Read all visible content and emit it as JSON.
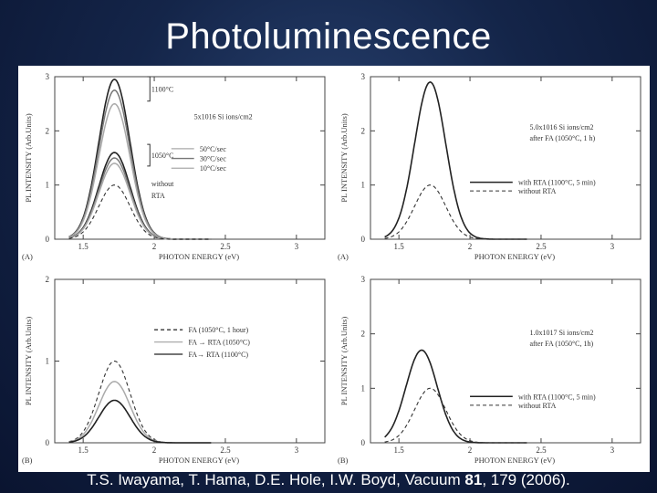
{
  "slide": {
    "title": "Photoluminescence",
    "citation_pre": "T.S. Iwayama, T. Hama, D.E. Hole, I.W. Boyd, Vacuum ",
    "citation_volume": "81",
    "citation_post": ", 179 (2006)."
  },
  "chart_data": [
    {
      "type": "line",
      "panel": "top-left",
      "tag": "(A)",
      "xlabel": "PHOTON ENERGY (eV)",
      "ylabel": "PL INTENSITY (Arb.Units)",
      "xlim": [
        1.3,
        3.2
      ],
      "ylim": [
        0,
        3
      ],
      "xticks": [
        "1.5",
        "2",
        "2.5",
        "3"
      ],
      "yticks": [
        "0",
        "1",
        "2",
        "3"
      ],
      "annotations": [
        "5x1016 Si ions/cm2",
        "1100°C",
        "1050°C"
      ],
      "legend": [
        "50°C/sec",
        "30°C/sec",
        "10°C/sec",
        "without",
        "RTA"
      ],
      "series": [
        {
          "peak_x": 1.72,
          "peak_y": 2.95,
          "style": "solid-dark"
        },
        {
          "peak_x": 1.72,
          "peak_y": 2.75,
          "style": "solid-gray"
        },
        {
          "peak_x": 1.72,
          "peak_y": 2.5,
          "style": "solid-light"
        },
        {
          "peak_x": 1.72,
          "peak_y": 1.6,
          "style": "solid-dark"
        },
        {
          "peak_x": 1.72,
          "peak_y": 1.5,
          "style": "solid-gray"
        },
        {
          "peak_x": 1.72,
          "peak_y": 1.4,
          "style": "solid-light"
        },
        {
          "peak_x": 1.72,
          "peak_y": 1.0,
          "style": "dashed"
        }
      ]
    },
    {
      "type": "line",
      "panel": "top-right",
      "tag": "(A)",
      "xlabel": "PHOTON ENERGY (eV)",
      "ylabel": "PL INTENSITY (Arb.Units)",
      "xlim": [
        1.3,
        3.2
      ],
      "ylim": [
        0,
        3
      ],
      "xticks": [
        "1.5",
        "2",
        "2.5",
        "3"
      ],
      "yticks": [
        "0",
        "1",
        "2",
        "3"
      ],
      "annotations": [
        "5.0x1016 Si ions/cm2",
        "after FA (1050°C, 1 h)"
      ],
      "legend": [
        "with RTA (1100°C, 5 min)",
        "without RTA"
      ],
      "series": [
        {
          "name": "with RTA (1100°C, 5 min)",
          "peak_x": 1.72,
          "peak_y": 2.9,
          "style": "solid-dark"
        },
        {
          "name": "without RTA",
          "peak_x": 1.72,
          "peak_y": 1.0,
          "style": "dashed"
        }
      ]
    },
    {
      "type": "line",
      "panel": "bottom-left",
      "tag": "(B)",
      "xlabel": "PHOTON ENERGY (eV)",
      "ylabel": "PL INTENSITY (Arb.Units)",
      "xlim": [
        1.3,
        3.2
      ],
      "ylim": [
        0,
        2
      ],
      "xticks": [
        "1.5",
        "2",
        "2.5",
        "3"
      ],
      "yticks": [
        "0",
        "1",
        "2"
      ],
      "annotations": [],
      "legend": [
        "FA (1050°C, 1 hour)",
        "FA → RTA (1050°C)",
        "FA→ RTA (1100°C)"
      ],
      "series": [
        {
          "name": "FA (1050°C, 1 hour)",
          "peak_x": 1.72,
          "peak_y": 1.0,
          "style": "dashed"
        },
        {
          "name": "FA → RTA (1050°C)",
          "peak_x": 1.72,
          "peak_y": 0.75,
          "style": "solid-light"
        },
        {
          "name": "FA→ RTA (1100°C)",
          "peak_x": 1.72,
          "peak_y": 0.52,
          "style": "solid-dark"
        }
      ]
    },
    {
      "type": "line",
      "panel": "bottom-right",
      "tag": "(B)",
      "xlabel": "PHOTON ENERGY (eV)",
      "ylabel": "PL INTENSITY (Arb.Units)",
      "xlim": [
        1.3,
        3.2
      ],
      "ylim": [
        0,
        3
      ],
      "xticks": [
        "1.5",
        "2",
        "2.5",
        "3"
      ],
      "yticks": [
        "0",
        "1",
        "2",
        "3"
      ],
      "annotations": [
        "1.0x1017 Si ions/cm2",
        "after FA (1050°C, 1h)"
      ],
      "legend": [
        "with RTA (1100°C, 5 min)",
        "without RTA"
      ],
      "series": [
        {
          "name": "with RTA (1100°C, 5 min)",
          "peak_x": 1.66,
          "peak_y": 1.7,
          "style": "solid-dark"
        },
        {
          "name": "without RTA",
          "peak_x": 1.72,
          "peak_y": 1.0,
          "style": "dashed"
        }
      ]
    }
  ]
}
